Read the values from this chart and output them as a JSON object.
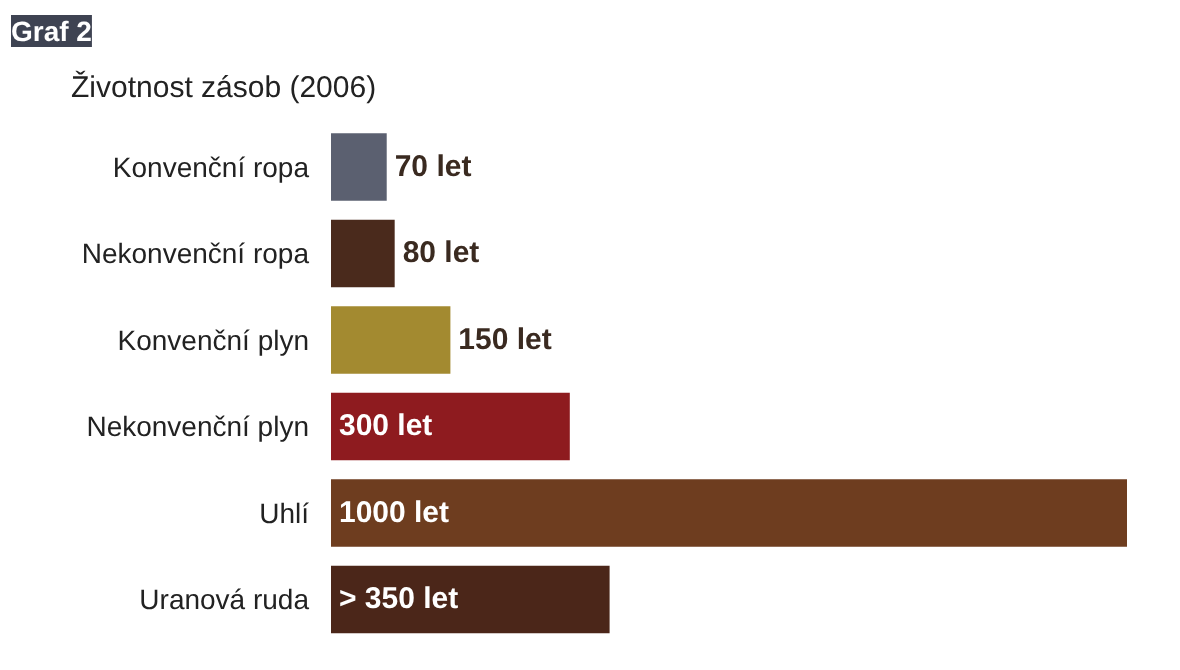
{
  "chart_data": {
    "type": "bar",
    "orientation": "horizontal",
    "title": "Životnost zásob (2006)",
    "annotations": [
      "Graf 2"
    ],
    "categories": [
      "Konvenční ropa",
      "Nekonvenční ropa",
      "Konvenční plyn",
      "Nekonvenční plyn",
      "Uhlí",
      "Uranová ruda"
    ],
    "values": [
      70,
      80,
      150,
      300,
      1000,
      350
    ],
    "colors": [
      "#5b6070",
      "#4a2a1c",
      "#a38a30",
      "#8e1b1f",
      "#6e3d1f",
      "#4b2619"
    ],
    "value_labels": [
      "70 let",
      "80 let",
      "150 let",
      "300 let",
      "1000 let",
      "> 350 let"
    ],
    "xlim": [
      0,
      1000
    ],
    "tick_labels": "y",
    "grid": false
  }
}
